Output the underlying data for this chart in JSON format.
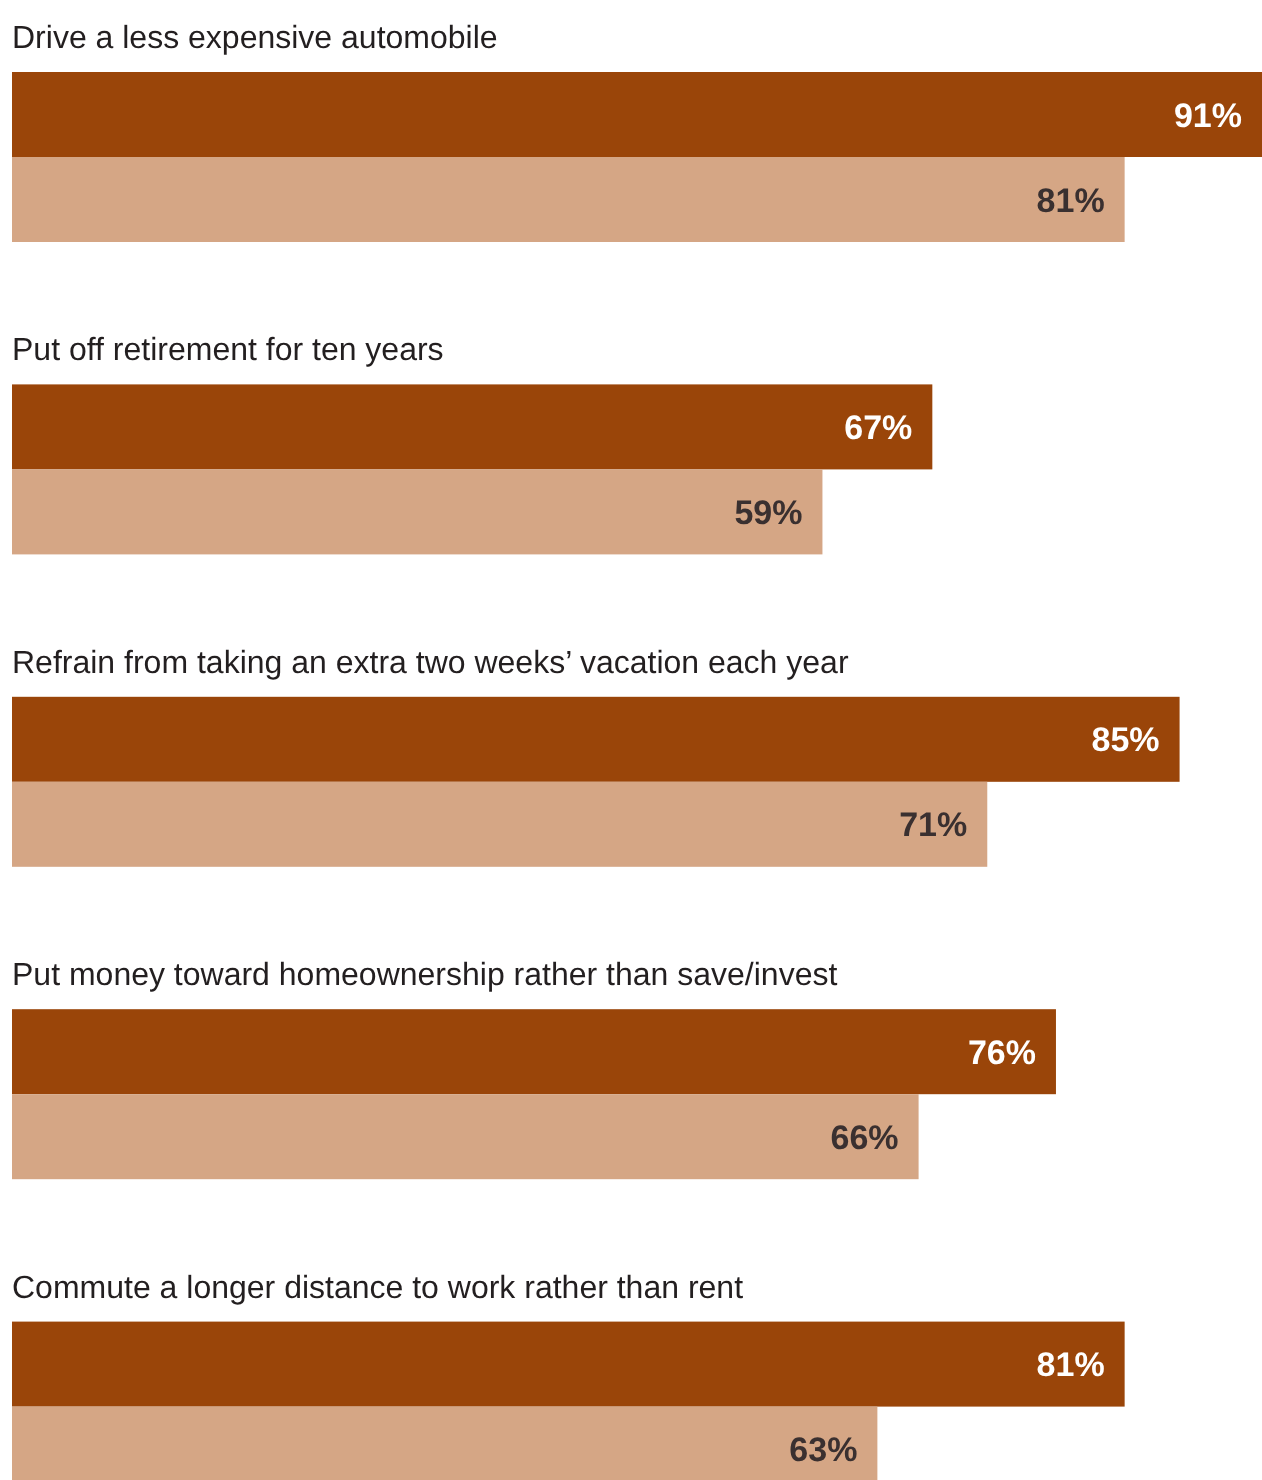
{
  "chart_data": {
    "type": "bar",
    "orientation": "horizontal",
    "categories": [
      "Drive a less expensive automobile",
      "Put off retirement for ten years",
      "Refrain from taking an extra two weeks’ vacation each year",
      "Put money toward homeownership rather than save/invest",
      "Commute a longer distance to work rather than rent"
    ],
    "series": [
      {
        "color": "#9a4509",
        "values": [
          91,
          67,
          85,
          76,
          81
        ],
        "value_labels": [
          "91%",
          "67%",
          "85%",
          "76%",
          "81%"
        ]
      },
      {
        "color": "#d5a685",
        "values": [
          81,
          59,
          71,
          66,
          63
        ],
        "value_labels": [
          "81%",
          "59%",
          "71%",
          "66%",
          "63%"
        ]
      }
    ]
  }
}
